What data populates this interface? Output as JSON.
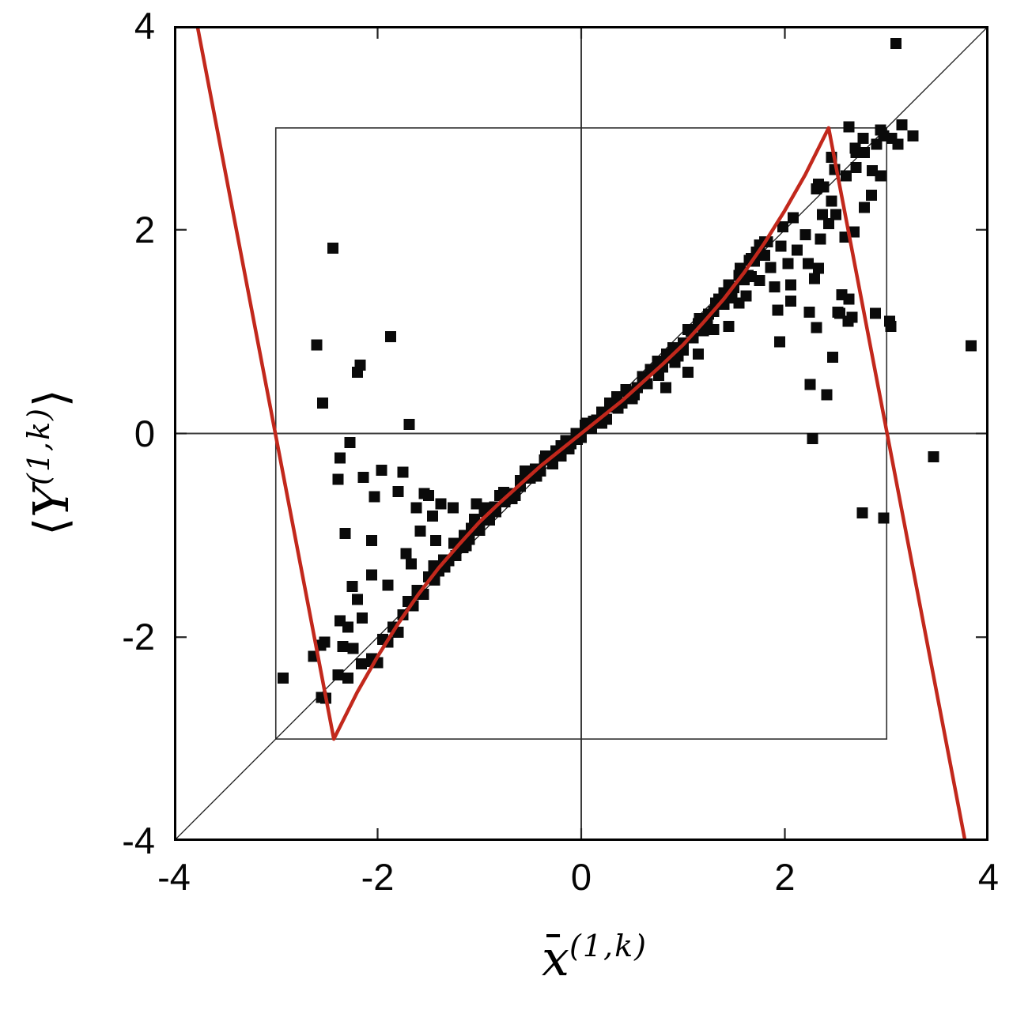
{
  "figure": {
    "axes": {
      "xlabel": {
        "base": "x",
        "has_overbar": true,
        "sup": "(1,k)"
      },
      "ylabel": {
        "left_bracket": "⟨",
        "base": "Y",
        "sup": "(1,k)",
        "right_bracket": "⟩"
      },
      "xticks": {
        "values": [
          -4,
          -2,
          0,
          2,
          4
        ],
        "labels": [
          "-4",
          "-2",
          "0",
          "2",
          "4"
        ]
      },
      "yticks": {
        "values": [
          -4,
          -2,
          0,
          2,
          4
        ],
        "labels": [
          "-4",
          "-2",
          "0",
          "2",
          "4"
        ]
      }
    },
    "colors": {
      "background": "#ffffff",
      "marker": "#0a0a0a",
      "curve": "#c2281c",
      "frame": "#000000",
      "zero_line": "#3c3c3c",
      "inner_box": "#2e2e2e",
      "diagonal": "#1c1c1c",
      "tick": "#222222"
    }
  },
  "chart_data": {
    "type": "scatter",
    "title": "",
    "xlabel": "x̄^(1,k)",
    "ylabel": "⟨Y^(1,k)⟩",
    "xlim": [
      -4,
      4
    ],
    "ylim": [
      -4,
      4
    ],
    "grid": false,
    "legend": "none",
    "marker_size_px": 14,
    "reference_lines": {
      "zero_vertical_x": 0,
      "zero_horizontal_y": 0,
      "diagonal": "y=x from (-4,-4) to (4,4)",
      "inner_box_range": [
        -3,
        3
      ],
      "minor_ticks_at": [
        -2,
        0,
        2
      ]
    },
    "map_curve": {
      "name": "red-map-curve",
      "color": "#c2281c",
      "points": [
        [
          -3.77,
          4
        ],
        [
          -2.43,
          -3
        ],
        [
          -2.2,
          -2.54
        ],
        [
          -2,
          -2.19
        ],
        [
          -1.8,
          -1.87
        ],
        [
          -1.6,
          -1.58
        ],
        [
          -1.4,
          -1.32
        ],
        [
          -1.2,
          -1.09
        ],
        [
          -1,
          -0.87
        ],
        [
          -0.8,
          -0.68
        ],
        [
          -0.6,
          -0.5
        ],
        [
          -0.4,
          -0.32
        ],
        [
          -0.2,
          -0.16
        ],
        [
          0,
          0
        ],
        [
          0.2,
          0.16
        ],
        [
          0.4,
          0.32
        ],
        [
          0.6,
          0.5
        ],
        [
          0.8,
          0.68
        ],
        [
          1,
          0.87
        ],
        [
          1.2,
          1.09
        ],
        [
          1.4,
          1.32
        ],
        [
          1.6,
          1.58
        ],
        [
          1.8,
          1.87
        ],
        [
          2,
          2.19
        ],
        [
          2.2,
          2.54
        ],
        [
          2.43,
          3
        ],
        [
          3.77,
          -4
        ]
      ]
    },
    "series": [
      {
        "name": "ensemble-average-points",
        "marker": "filled-square",
        "color": "#0a0a0a",
        "points": [
          [
            -2.05,
            -2.24
          ],
          [
            -2,
            -2.25
          ],
          [
            -1.95,
            -2.02
          ],
          [
            -1.9,
            -2.05
          ],
          [
            -1.85,
            -1.9
          ],
          [
            -1.8,
            -1.95
          ],
          [
            -1.75,
            -1.78
          ],
          [
            -1.7,
            -1.65
          ],
          [
            -1.65,
            -1.69
          ],
          [
            -1.6,
            -1.58
          ],
          [
            -1.55,
            -1.58
          ],
          [
            -1.5,
            -1.41
          ],
          [
            -1.45,
            -1.3
          ],
          [
            -1.4,
            -1.35
          ],
          [
            -1.35,
            -1.24
          ],
          [
            -1.3,
            -1.25
          ],
          [
            -1.25,
            -1.08
          ],
          [
            -1.2,
            -1.1
          ],
          [
            -1.15,
            -1
          ],
          [
            -1.1,
            -1.04
          ],
          [
            -1.05,
            -0.84
          ],
          [
            -1,
            -0.89
          ],
          [
            -0.95,
            -0.77
          ],
          [
            -0.9,
            -0.85
          ],
          [
            -0.85,
            -0.72
          ],
          [
            -0.8,
            -0.61
          ],
          [
            -0.75,
            -0.67
          ],
          [
            -0.7,
            -0.59
          ],
          [
            -0.65,
            -0.61
          ],
          [
            -0.6,
            -0.46
          ],
          [
            -0.55,
            -0.37
          ],
          [
            -0.5,
            -0.44
          ],
          [
            -0.45,
            -0.35
          ],
          [
            -0.4,
            -0.37
          ],
          [
            -0.35,
            -0.22
          ],
          [
            -0.3,
            -0.25
          ],
          [
            -0.25,
            -0.17
          ],
          [
            -0.2,
            -0.22
          ],
          [
            -0.15,
            -0.07
          ],
          [
            -0.1,
            -0.1
          ],
          [
            -0.05,
            0
          ],
          [
            0,
            -0.04
          ],
          [
            0.05,
            0.1
          ],
          [
            0.1,
            0.05
          ],
          [
            0.15,
            0.13
          ],
          [
            0.2,
            0.21
          ],
          [
            0.25,
            0.14
          ],
          [
            0.3,
            0.26
          ],
          [
            0.35,
            0.36
          ],
          [
            0.4,
            0.3
          ],
          [
            0.45,
            0.41
          ],
          [
            0.5,
            0.34
          ],
          [
            0.55,
            0.45
          ],
          [
            0.6,
            0.56
          ],
          [
            0.65,
            0.49
          ],
          [
            0.7,
            0.62
          ],
          [
            0.75,
            0.71
          ],
          [
            0.8,
            0.65
          ],
          [
            0.85,
            0.74
          ],
          [
            0.9,
            0.84
          ],
          [
            0.95,
            0.76
          ],
          [
            1,
            0.89
          ],
          [
            1.05,
            1.02
          ],
          [
            1.1,
            0.94
          ],
          [
            1.15,
            1.08
          ],
          [
            1.2,
            1.01
          ],
          [
            1.25,
            1.17
          ],
          [
            1.3,
            1.2
          ],
          [
            1.35,
            1.32
          ],
          [
            1.4,
            1.27
          ],
          [
            1.45,
            1.46
          ],
          [
            1.5,
            1.43
          ],
          [
            1.55,
            1.55
          ],
          [
            1.6,
            1.51
          ],
          [
            1.65,
            1.7
          ],
          [
            1.7,
            1.69
          ],
          [
            1.75,
            1.85
          ],
          [
            1.8,
            1.88
          ],
          [
            -1.16,
            -1.12
          ],
          [
            -1.08,
            -0.93
          ],
          [
            -1,
            -0.95
          ],
          [
            -0.92,
            -0.73
          ],
          [
            -0.84,
            -0.77
          ],
          [
            -0.76,
            -0.58
          ],
          [
            -0.68,
            -0.64
          ],
          [
            -0.6,
            -0.52
          ],
          [
            -0.52,
            -0.4
          ],
          [
            -0.44,
            -0.42
          ],
          [
            -0.36,
            -0.26
          ],
          [
            -0.28,
            -0.3
          ],
          [
            -0.2,
            -0.12
          ],
          [
            -0.12,
            -0.15
          ],
          [
            -0.04,
            -0.06
          ],
          [
            0.04,
            0.08
          ],
          [
            0.12,
            0.12
          ],
          [
            0.2,
            0.1
          ],
          [
            0.28,
            0.3
          ],
          [
            0.36,
            0.25
          ],
          [
            0.44,
            0.43
          ],
          [
            0.52,
            0.38
          ],
          [
            0.6,
            0.5
          ],
          [
            0.68,
            0.63
          ],
          [
            0.76,
            0.57
          ],
          [
            0.84,
            0.78
          ],
          [
            0.92,
            0.7
          ],
          [
            1,
            0.82
          ],
          [
            1.08,
            1
          ],
          [
            1.16,
            1.13
          ],
          [
            1.24,
            1.1
          ],
          [
            1.32,
            1.28
          ],
          [
            1.4,
            1.38
          ],
          [
            1.48,
            1.33
          ],
          [
            1.56,
            1.62
          ],
          [
            1.64,
            1.55
          ],
          [
            1.72,
            1.78
          ],
          [
            1.8,
            1.75
          ],
          [
            0.83,
            0.45
          ],
          [
            1.05,
            0.6
          ],
          [
            1.15,
            0.78
          ],
          [
            1.3,
            1.02
          ],
          [
            1.45,
            1.05
          ],
          [
            1.55,
            1.28
          ],
          [
            1.62,
            1.35
          ],
          [
            1.67,
            1.72
          ],
          [
            1.75,
            1.77
          ],
          [
            1.83,
            1.88
          ],
          [
            1.96,
            1.84
          ],
          [
            2.12,
            1.8
          ],
          [
            2.03,
            1.67
          ],
          [
            1.86,
            1.63
          ],
          [
            2.23,
            1.67
          ],
          [
            2.29,
            1.52
          ],
          [
            2.06,
            1.46
          ],
          [
            1.9,
            1.44
          ],
          [
            1.75,
            1.5
          ],
          [
            1.67,
            1.54
          ],
          [
            1.98,
            2.03
          ],
          [
            2.08,
            2.12
          ],
          [
            1.95,
            0.9
          ],
          [
            1.93,
            1.21
          ],
          [
            2.06,
            1.3
          ],
          [
            2.63,
            3.01
          ],
          [
            2.94,
            2.98
          ],
          [
            3.15,
            3.03
          ],
          [
            3.26,
            2.92
          ],
          [
            3.05,
            2.9
          ],
          [
            2.9,
            2.84
          ],
          [
            2.77,
            2.9
          ],
          [
            2.7,
            2.76
          ],
          [
            2.78,
            2.76
          ],
          [
            2.46,
            2.71
          ],
          [
            2.49,
            2.59
          ],
          [
            2.7,
            2.61
          ],
          [
            2.86,
            2.58
          ],
          [
            2.6,
            2.53
          ],
          [
            2.38,
            2.42
          ],
          [
            2.31,
            2.4
          ],
          [
            2.46,
            2.28
          ],
          [
            2.37,
            2.15
          ],
          [
            2.85,
            2.34
          ],
          [
            2.43,
            2.06
          ],
          [
            2.68,
            1.98
          ],
          [
            2.59,
            1.93
          ],
          [
            2.35,
            1.91
          ],
          [
            2.33,
            1.62
          ],
          [
            2.56,
            1.36
          ],
          [
            2.63,
            1.32
          ],
          [
            2.54,
            1.18
          ],
          [
            2.62,
            1.1
          ],
          [
            2.89,
            1.18
          ],
          [
            3.03,
            1.1
          ],
          [
            2.97,
            2.92
          ],
          [
            3.11,
            2.84
          ],
          [
            2.69,
            2.8
          ],
          [
            2.94,
            2.53
          ],
          [
            2.78,
            2.22
          ],
          [
            2.5,
            2.15
          ],
          [
            2.2,
            1.95
          ],
          [
            2.33,
            2.45
          ],
          [
            3.09,
            3.83
          ],
          [
            3.83,
            0.86
          ],
          [
            3.46,
            -0.23
          ],
          [
            2.76,
            -0.78
          ],
          [
            2.97,
            -0.83
          ],
          [
            2.27,
            -0.05
          ],
          [
            2.31,
            1.04
          ],
          [
            2.24,
            1.19
          ],
          [
            2.52,
            1.19
          ],
          [
            2.47,
            0.75
          ],
          [
            2.41,
            0.38
          ],
          [
            2.25,
            0.48
          ],
          [
            2.66,
            1.14
          ],
          [
            3.04,
            1.05
          ],
          [
            -2.44,
            1.82
          ],
          [
            -1.87,
            0.95
          ],
          [
            -2.6,
            0.87
          ],
          [
            -2.17,
            0.67
          ],
          [
            -2.2,
            0.6
          ],
          [
            -2.54,
            0.3
          ],
          [
            -1.69,
            0.09
          ],
          [
            -2.27,
            -0.09
          ],
          [
            -2.37,
            -0.24
          ],
          [
            -2.39,
            -0.45
          ],
          [
            -2.14,
            -0.43
          ],
          [
            -1.96,
            -0.36
          ],
          [
            -1.75,
            -0.38
          ],
          [
            -2.32,
            -0.98
          ],
          [
            -2.06,
            -1.05
          ],
          [
            -2.03,
            -0.62
          ],
          [
            -1.8,
            -0.57
          ],
          [
            -1.5,
            -0.61
          ],
          [
            -1.62,
            -0.73
          ],
          [
            -1.54,
            -0.59
          ],
          [
            -1.46,
            -0.81
          ],
          [
            -1.38,
            -0.69
          ],
          [
            -1.26,
            -0.73
          ],
          [
            -1.03,
            -0.69
          ],
          [
            -1.72,
            -1.18
          ],
          [
            -1.67,
            -1.28
          ],
          [
            -1.61,
            -1.54
          ],
          [
            -2.06,
            -1.39
          ],
          [
            -1.9,
            -1.49
          ],
          [
            -2.25,
            -1.5
          ],
          [
            -2.2,
            -1.63
          ],
          [
            -2.15,
            -1.81
          ],
          [
            -2.37,
            -1.84
          ],
          [
            -2.29,
            -1.9
          ],
          [
            -2.52,
            -2.05
          ],
          [
            -2.34,
            -2.09
          ],
          [
            -2.24,
            -2.11
          ],
          [
            -2.06,
            -2.21
          ],
          [
            -2.16,
            -2.26
          ],
          [
            -2.39,
            -2.37
          ],
          [
            -2.29,
            -2.4
          ],
          [
            -2.93,
            -2.4
          ],
          [
            -2.51,
            -2.6
          ],
          [
            -2.56,
            -2.08
          ],
          [
            -2.63,
            -2.19
          ],
          [
            -2.55,
            -2.59
          ],
          [
            -1.34,
            -1.31
          ],
          [
            -1.23,
            -1.2
          ],
          [
            -1.13,
            -1.1
          ],
          [
            -1.44,
            -1.44
          ],
          [
            -1.58,
            -0.96
          ],
          [
            -1.43,
            -1.05
          ]
        ]
      }
    ]
  }
}
